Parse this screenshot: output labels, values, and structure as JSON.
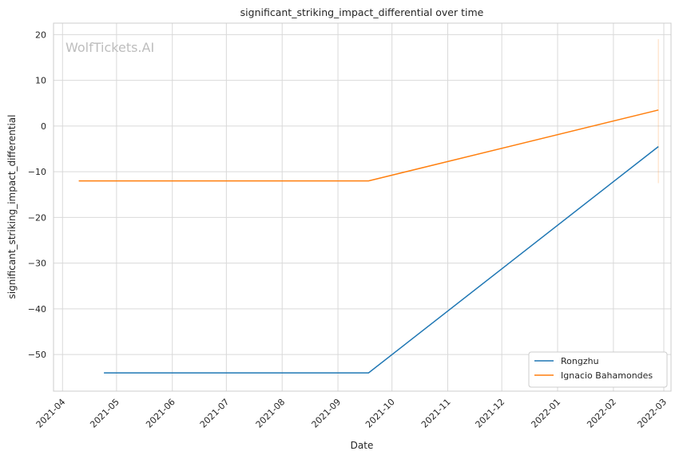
{
  "chart_data": {
    "type": "line",
    "title": "significant_striking_impact_differential over time",
    "xlabel": "Date",
    "ylabel": "significant_striking_impact_differential",
    "watermark": "WolfTickets.AI",
    "x_ticks": [
      "2021-04",
      "2021-05",
      "2021-06",
      "2021-07",
      "2021-08",
      "2021-09",
      "2021-10",
      "2021-11",
      "2021-12",
      "2022-01",
      "2022-02",
      "2022-03"
    ],
    "y_ticks": [
      "20",
      "10",
      "0",
      "−10",
      "−20",
      "−30",
      "−40",
      "−50"
    ],
    "xlim": [
      "2021-03-27",
      "2022-03-05"
    ],
    "ylim": [
      -58,
      22.5
    ],
    "grid": true,
    "legend_position": "bottom-right",
    "series": [
      {
        "name": "Rongzhu",
        "color": "#1f77b4",
        "points": [
          {
            "x": "2021-04-24",
            "y": -54
          },
          {
            "x": "2021-09-18",
            "y": -54
          },
          {
            "x": "2022-02-26",
            "y": -4.5
          }
        ]
      },
      {
        "name": "Ignacio Bahamondes",
        "color": "#ff7f0e",
        "points": [
          {
            "x": "2021-04-10",
            "y": -12
          },
          {
            "x": "2021-09-18",
            "y": -12
          },
          {
            "x": "2022-02-26",
            "y": 3.5
          }
        ],
        "band": {
          "x": "2022-02-26",
          "low": -12.5,
          "high": 19
        }
      }
    ]
  }
}
